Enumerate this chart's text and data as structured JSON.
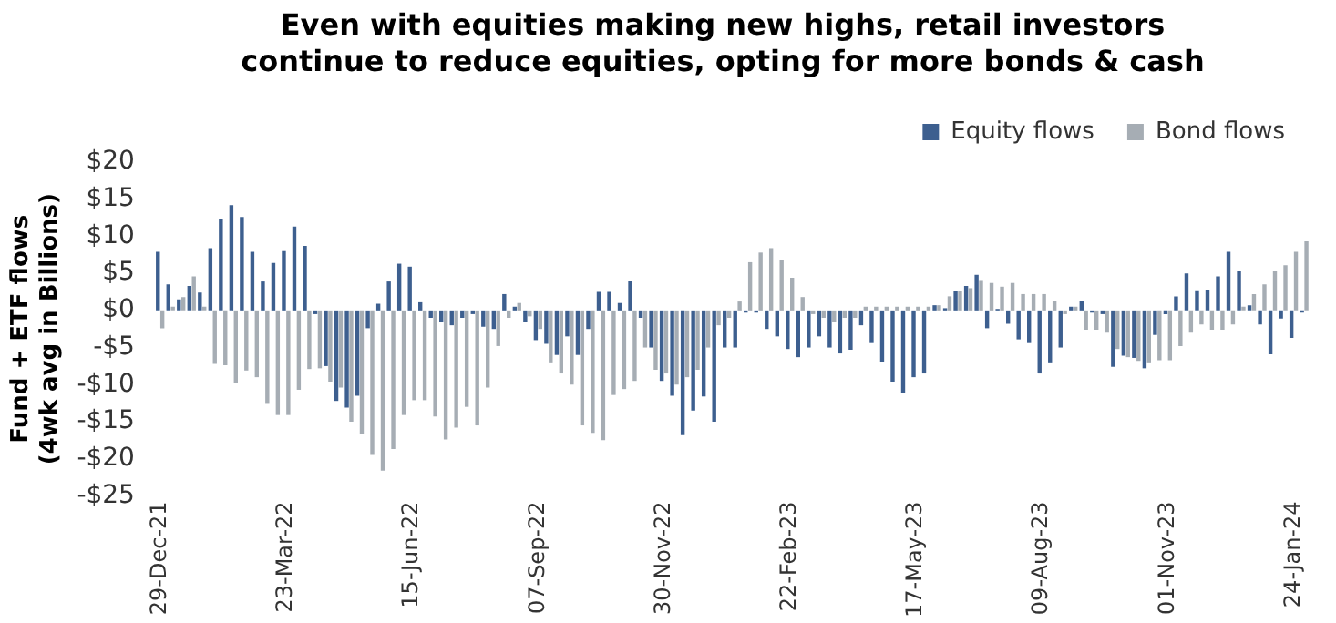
{
  "chart_data": {
    "type": "bar",
    "title": "Even with equities making new highs, retail investors continue to reduce equities, opting for more bonds & cash",
    "ylabel": "Fund + ETF flows (4wk avg in Billions)",
    "categories": [
      "29-Dec-21",
      null,
      null,
      null,
      null,
      null,
      null,
      null,
      null,
      null,
      null,
      null,
      "23-Mar-22",
      null,
      null,
      null,
      null,
      null,
      null,
      null,
      null,
      null,
      null,
      null,
      "15-Jun-22",
      null,
      null,
      null,
      null,
      null,
      null,
      null,
      null,
      null,
      null,
      null,
      "07-Sep-22",
      null,
      null,
      null,
      null,
      null,
      null,
      null,
      null,
      null,
      null,
      null,
      "30-Nov-22",
      null,
      null,
      null,
      null,
      null,
      null,
      null,
      null,
      null,
      null,
      null,
      "22-Feb-23",
      null,
      null,
      null,
      null,
      null,
      null,
      null,
      null,
      null,
      null,
      null,
      "17-May-23",
      null,
      null,
      null,
      null,
      null,
      null,
      null,
      null,
      null,
      null,
      null,
      "09-Aug-23",
      null,
      null,
      null,
      null,
      null,
      null,
      null,
      null,
      null,
      null,
      null,
      "01-Nov-23",
      null,
      null,
      null,
      null,
      null,
      null,
      null,
      null,
      null,
      null,
      null,
      "24-Jan-24",
      null
    ],
    "series": [
      {
        "name": "Equity flows",
        "color": "#3d5f8f",
        "values": [
          7.9,
          3.5,
          1.5,
          3.3,
          2.4,
          8.4,
          12.4,
          14.2,
          12.6,
          7.9,
          3.9,
          6.4,
          8.0,
          11.3,
          8.7,
          -0.5,
          -7.5,
          -12.2,
          -13.1,
          -11.5,
          -2.4,
          0.9,
          3.9,
          6.3,
          5.9,
          1.1,
          -1.0,
          -1.5,
          -2.0,
          -1.0,
          -0.5,
          -2.2,
          -2.5,
          2.2,
          0.5,
          -1.5,
          -4.0,
          -4.5,
          -6.0,
          -3.5,
          -6.0,
          -2.5,
          2.5,
          2.5,
          1.0,
          4.0,
          -1.0,
          -5.0,
          -9.5,
          -11.5,
          -16.8,
          -13.5,
          -11.6,
          -15.0,
          -5.0,
          -5.0,
          -0.3,
          -0.3,
          -2.5,
          -3.5,
          -5.2,
          -6.3,
          -5.0,
          -3.5,
          -5.0,
          -5.8,
          -5.3,
          -2.0,
          -4.4,
          -6.9,
          -9.6,
          -11.1,
          -9.0,
          -8.5,
          0.7,
          0.3,
          2.6,
          3.3,
          4.8,
          -2.4,
          0.2,
          -1.8,
          -3.9,
          -4.4,
          -8.5,
          -7.0,
          -5.0,
          0.5,
          1.3,
          -0.3,
          -0.5,
          -7.6,
          -6.1,
          -6.4,
          -7.8,
          -3.3,
          -0.5,
          1.9,
          5.0,
          2.7,
          2.8,
          4.6,
          7.9,
          5.3,
          0.7,
          -1.9,
          -5.9,
          -1.1,
          -3.7,
          -0.3
        ]
      },
      {
        "name": "Bond flows",
        "color": "#a6adb4",
        "values": [
          -2.4,
          0.5,
          1.8,
          4.6,
          0.5,
          -7.2,
          -7.4,
          -9.8,
          -8.1,
          -9.0,
          -12.6,
          -14.1,
          -14.1,
          -10.7,
          -7.9,
          -7.8,
          -9.6,
          -10.4,
          -15.0,
          -16.7,
          -19.5,
          -21.6,
          -18.7,
          -14.1,
          -12.1,
          -12.1,
          -14.3,
          -17.4,
          -15.8,
          -13.0,
          -15.5,
          -10.4,
          -4.8,
          -1.0,
          1.0,
          -0.8,
          -2.5,
          -7.0,
          -8.5,
          -10.0,
          -15.5,
          -16.5,
          -17.5,
          -11.4,
          -10.6,
          -9.5,
          -5.0,
          -8.0,
          -8.5,
          -10.0,
          -9.0,
          -8.0,
          -5.0,
          -2.0,
          -1.0,
          1.2,
          6.5,
          7.8,
          8.4,
          6.8,
          4.4,
          1.8,
          -0.5,
          -1.0,
          -1.5,
          -1.0,
          -1.0,
          0.5,
          0.5,
          0.5,
          0.5,
          0.5,
          0.5,
          0.5,
          0.7,
          1.9,
          2.6,
          3.0,
          4.1,
          3.7,
          3.2,
          3.7,
          2.2,
          2.2,
          2.2,
          1.3,
          -0.5,
          0.5,
          -2.6,
          -2.6,
          -3.0,
          -5.2,
          -6.3,
          -6.8,
          -7.0,
          -6.7,
          -6.7,
          -4.8,
          -3.0,
          -1.9,
          -2.6,
          -2.6,
          -1.9,
          0.5,
          2.2,
          3.5,
          5.4,
          6.1,
          7.9,
          9.3
        ]
      }
    ],
    "ylim": [
      -25,
      20
    ],
    "yticks": [
      {
        "value": 20,
        "label": "$20"
      },
      {
        "value": 15,
        "label": "$15"
      },
      {
        "value": 10,
        "label": "$10"
      },
      {
        "value": 5,
        "label": "$5"
      },
      {
        "value": 0,
        "label": "$0"
      },
      {
        "value": -5,
        "label": "-$5"
      },
      {
        "value": -10,
        "label": "-$10"
      },
      {
        "value": -15,
        "label": "-$15"
      },
      {
        "value": -20,
        "label": "-$20"
      },
      {
        "value": -25,
        "label": "-$25"
      }
    ],
    "grid": false,
    "legend": "top right"
  }
}
